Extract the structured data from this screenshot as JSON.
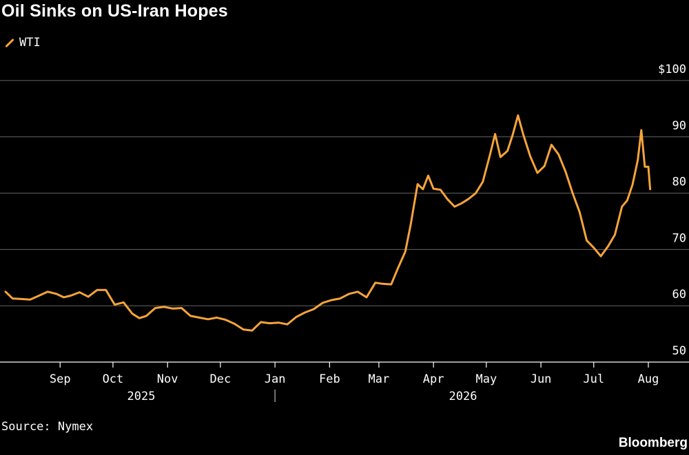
{
  "title": "Oil Sinks on US-Iran Hopes",
  "legend": {
    "label": "WTI",
    "color": "#f7a43a",
    "icon": "line-swatch-icon"
  },
  "source": "Source: Nymex",
  "brand": "Bloomberg",
  "chart_data": {
    "type": "line",
    "title": "Oil Sinks on US-Iran Hopes",
    "ylim": [
      50,
      100
    ],
    "y_ticks": [
      50,
      60,
      70,
      80,
      90,
      100
    ],
    "y_tick_labels": [
      "50",
      "60",
      "70",
      "80",
      "90",
      "$100"
    ],
    "x_months": [
      "Sep",
      "Oct",
      "Nov",
      "Dec",
      "Jan",
      "Feb",
      "Mar",
      "Apr",
      "May",
      "Jun",
      "Jul",
      "Aug"
    ],
    "x_years": [
      "2025",
      "2026"
    ],
    "grid": "horizontal",
    "legend_position": "top-left",
    "series": [
      {
        "name": "WTI",
        "color": "#f7a43a",
        "x": [
          "2025-08-01",
          "2025-08-05",
          "2025-08-10",
          "2025-08-15",
          "2025-08-20",
          "2025-08-25",
          "2025-08-30",
          "2025-09-03",
          "2025-09-07",
          "2025-09-12",
          "2025-09-17",
          "2025-09-22",
          "2025-09-27",
          "2025-10-02",
          "2025-10-07",
          "2025-10-12",
          "2025-10-16",
          "2025-10-20",
          "2025-10-25",
          "2025-10-30",
          "2025-11-04",
          "2025-11-09",
          "2025-11-14",
          "2025-11-19",
          "2025-11-24",
          "2025-11-29",
          "2025-12-04",
          "2025-12-09",
          "2025-12-14",
          "2025-12-19",
          "2025-12-24",
          "2025-12-29",
          "2026-01-03",
          "2026-01-08",
          "2026-01-13",
          "2026-01-18",
          "2026-01-23",
          "2026-01-28",
          "2026-02-02",
          "2026-02-07",
          "2026-02-12",
          "2026-02-17",
          "2026-02-22",
          "2026-02-27",
          "2026-03-03",
          "2026-03-08",
          "2026-03-12",
          "2026-03-16",
          "2026-03-19",
          "2026-03-23",
          "2026-03-26",
          "2026-03-29",
          "2026-04-01",
          "2026-04-05",
          "2026-04-09",
          "2026-04-13",
          "2026-04-17",
          "2026-04-21",
          "2026-04-25",
          "2026-04-29",
          "2026-05-03",
          "2026-05-06",
          "2026-05-09",
          "2026-05-13",
          "2026-05-16",
          "2026-05-19",
          "2026-05-22",
          "2026-05-26",
          "2026-05-30",
          "2026-06-03",
          "2026-06-07",
          "2026-06-11",
          "2026-06-15",
          "2026-06-19",
          "2026-06-23",
          "2026-06-27",
          "2026-07-01",
          "2026-07-05",
          "2026-07-09",
          "2026-07-13",
          "2026-07-17",
          "2026-07-20",
          "2026-07-23",
          "2026-07-26",
          "2026-07-28",
          "2026-07-30",
          "2026-08-01",
          "2026-08-02"
        ],
        "values": [
          62.5,
          61.3,
          61.2,
          61.1,
          61.8,
          62.5,
          62.1,
          61.5,
          61.8,
          62.4,
          61.6,
          62.8,
          62.8,
          60.2,
          60.6,
          58.6,
          57.8,
          58.2,
          59.6,
          59.8,
          59.5,
          59.6,
          58.2,
          57.9,
          57.6,
          57.9,
          57.5,
          56.8,
          55.8,
          55.6,
          57.1,
          56.9,
          57.0,
          56.7,
          58.0,
          58.8,
          59.4,
          60.5,
          61.0,
          61.3,
          62.1,
          62.5,
          61.5,
          64.1,
          63.9,
          63.8,
          66.8,
          69.6,
          74.3,
          81.6,
          80.7,
          83.1,
          80.8,
          80.6,
          78.9,
          77.6,
          78.2,
          79.0,
          80.0,
          82.0,
          86.7,
          90.5,
          86.4,
          87.5,
          90.4,
          93.8,
          90.4,
          86.5,
          83.6,
          84.8,
          88.6,
          86.9,
          83.8,
          80.0,
          76.6,
          71.6,
          70.3,
          68.8,
          70.5,
          72.6,
          77.6,
          78.7,
          81.5,
          85.9,
          91.2,
          84.7,
          84.7,
          80.7
        ]
      }
    ]
  }
}
